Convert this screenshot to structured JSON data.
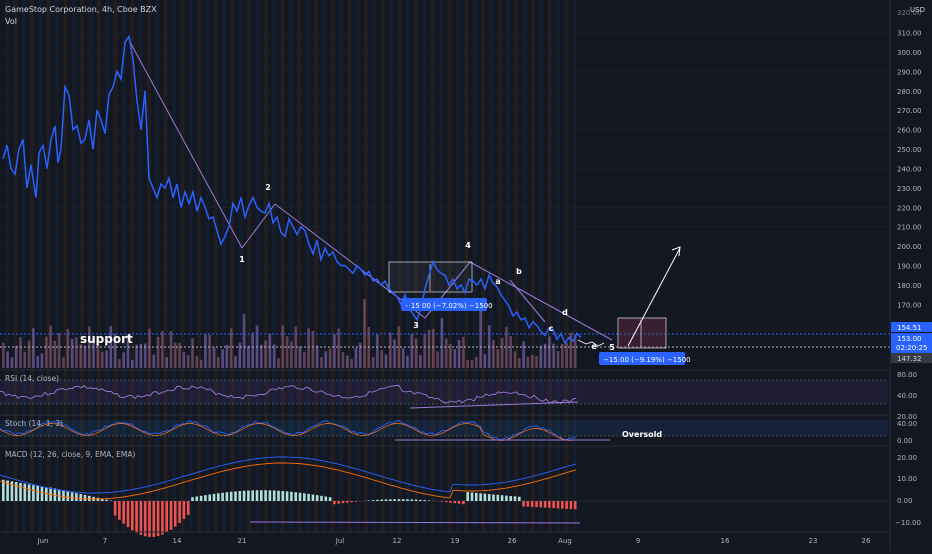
{
  "header": {
    "title": "GameStop Corporation, 4h, Cboe BZX",
    "volume_label": "Vol",
    "currency": "USD",
    "top_price_label": "320.00"
  },
  "price_axis": [
    "310.00",
    "300.00",
    "290.00",
    "280.00",
    "270.00",
    "260.00",
    "250.00",
    "240.00",
    "230.00",
    "220.00",
    "210.00",
    "200.00",
    "190.00",
    "180.00",
    "170.00"
  ],
  "price_badges": {
    "upper": "154.51",
    "current": "153.00",
    "countdown": "02:20:25",
    "lower": "147.32"
  },
  "x_labels": [
    "Jun",
    "7",
    "14",
    "21",
    "Jul",
    "12",
    "19",
    "26",
    "Aug",
    "9",
    "16",
    "23",
    "26"
  ],
  "annotations": {
    "support": "support",
    "oversold": "Oversold",
    "measure_1": "−15.00 (−7.02%) −1500",
    "measure_2": "−15.00 (−9.19%) −1500",
    "waves": [
      "1",
      "2",
      "3",
      "4",
      "5",
      "a",
      "b",
      "c",
      "d",
      "e"
    ]
  },
  "indicators": {
    "rsi": {
      "label": "RSI (14, close)",
      "ticks": [
        "80.00",
        "40.00",
        "20.00"
      ]
    },
    "stoch": {
      "label": "Stoch (14, 1, 3)",
      "ticks": [
        "40.00",
        "0.00"
      ]
    },
    "macd": {
      "label": "MACD (12, 26, close, 9, EMA, EMA)",
      "ticks": [
        "20.00",
        "10.00",
        "0.00",
        "−10.00"
      ]
    }
  },
  "colors": {
    "background": "#131722",
    "price_line": "#2962ff",
    "trendline": "#9c7bd6",
    "macd_line": "#2962ff",
    "signal_line": "#ff6d00",
    "hist_pos": "#b2dfdb",
    "hist_neg": "#ef5350",
    "badge": "#2962ff"
  },
  "chart_data": {
    "type": "line",
    "title": "GameStop Corporation, 4h, Cboe BZX",
    "ylim": [
      140,
      322
    ],
    "x": [
      0,
      4,
      8,
      12,
      16,
      20,
      24,
      28,
      30,
      33,
      36,
      40,
      44,
      48,
      52,
      55,
      58,
      62,
      66,
      70,
      74,
      78,
      82,
      86,
      90,
      94,
      98,
      102,
      106,
      110,
      114,
      118,
      122,
      126,
      130,
      134,
      138,
      142,
      146,
      150,
      154,
      158,
      162,
      166,
      170,
      174,
      178,
      182,
      186,
      190,
      194,
      198,
      202,
      206,
      210,
      214,
      218,
      222,
      226,
      230,
      234,
      238,
      242,
      246,
      250,
      254,
      258,
      262,
      266,
      270,
      274,
      278,
      282,
      286,
      290,
      294,
      298,
      302,
      306,
      310,
      314,
      318,
      322,
      326,
      330,
      334,
      338,
      342,
      346,
      350,
      354,
      358,
      362,
      366,
      370,
      374,
      378,
      382,
      386,
      390,
      394,
      398,
      402,
      406,
      410,
      414,
      418,
      422,
      426,
      430,
      434,
      438,
      442,
      446,
      450,
      454,
      458,
      462,
      466,
      470,
      474,
      478,
      482,
      486,
      490,
      494,
      498,
      502,
      506,
      510,
      514,
      518,
      522,
      526,
      530,
      534,
      538,
      542,
      546,
      550,
      554,
      558,
      562,
      566,
      570,
      574,
      578
    ],
    "y": [
      245,
      252,
      240,
      237,
      250,
      255,
      230,
      242,
      235,
      225,
      248,
      252,
      240,
      255,
      262,
      243,
      250,
      282,
      278,
      260,
      262,
      253,
      255,
      265,
      250,
      270,
      265,
      258,
      278,
      282,
      290,
      286,
      305,
      308,
      296,
      275,
      260,
      280,
      235,
      230,
      225,
      232,
      230,
      235,
      225,
      232,
      220,
      228,
      222,
      228,
      218,
      225,
      220,
      214,
      215,
      208,
      201,
      205,
      210,
      222,
      218,
      225,
      215,
      221,
      225,
      220,
      218,
      217,
      222,
      212,
      215,
      207,
      205,
      214,
      210,
      206,
      210,
      208,
      201,
      196,
      203,
      193,
      199,
      195,
      197,
      192,
      190,
      190,
      188,
      186,
      190,
      188,
      185,
      187,
      182,
      183,
      180,
      182,
      178,
      176,
      174,
      170,
      175,
      168,
      165,
      162,
      168,
      178,
      185,
      192,
      188,
      186,
      185,
      180,
      183,
      178,
      180,
      176,
      183,
      182,
      180,
      183,
      178,
      185,
      181,
      179,
      175,
      172,
      169,
      164,
      166,
      162,
      163,
      158,
      161,
      159,
      156,
      154,
      158,
      157,
      152,
      155,
      150,
      153,
      151,
      155,
      153
    ],
    "series": [
      {
        "values": [
          245,
          252,
          240,
          237,
          250,
          255,
          230,
          242,
          235,
          225,
          248,
          252,
          240,
          255,
          262,
          243,
          250,
          282,
          278,
          260,
          262,
          253,
          255,
          265,
          250,
          270,
          265,
          258,
          278,
          282,
          290,
          286,
          305,
          308,
          296,
          275,
          260,
          280,
          235,
          230,
          225,
          232,
          230,
          235,
          225,
          232,
          220,
          228,
          222,
          228,
          218,
          225,
          220,
          214,
          215,
          208,
          201,
          205,
          210,
          222,
          218,
          225,
          215,
          221,
          225,
          220,
          218,
          217,
          222,
          212,
          215,
          207,
          205,
          214,
          210,
          206,
          210,
          208,
          201,
          196,
          203,
          193,
          199,
          195,
          197,
          192,
          190,
          190,
          188,
          186,
          190,
          188,
          185,
          187,
          182,
          183,
          180,
          182,
          178,
          176,
          174,
          170,
          175,
          168,
          165,
          162,
          168,
          178,
          185,
          192,
          188,
          186,
          185,
          180,
          183,
          178,
          180,
          176,
          183,
          182,
          180,
          183,
          178,
          185,
          181,
          179,
          175,
          172,
          169,
          164,
          166,
          162,
          163,
          158,
          161,
          159,
          156,
          154,
          158,
          157,
          152,
          155,
          150,
          153,
          151,
          155,
          153
        ]
      }
    ]
  }
}
